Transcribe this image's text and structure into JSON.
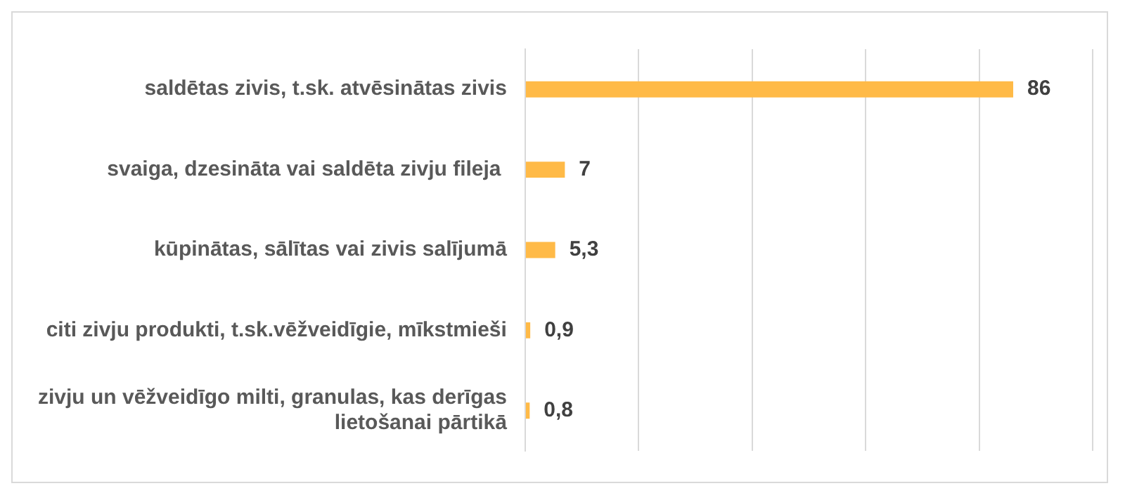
{
  "chart_data": {
    "type": "bar",
    "orientation": "horizontal",
    "categories": [
      "saldētas zivis, t.sk. atvēsinātas zivis",
      "svaiga, dzesināta vai saldēta zivju fileja ",
      "kūpinātas, sālītas vai zivis salījumā",
      "citi zivju produkti, t.sk.vēžveidīgie, mīkstmieši",
      "zivju un vēžveidīgo milti, granulas, kas derīgas lietošanai pārtikā"
    ],
    "values": [
      86,
      7,
      5.3,
      0.9,
      0.8
    ],
    "value_labels": [
      "86",
      "7",
      "5,3",
      "0,9",
      "0,8"
    ],
    "color": "#ffba47",
    "xlim": [
      0,
      100
    ],
    "xticks": [
      {
        "value": 0,
        "label": null
      },
      {
        "value": 20,
        "label": null
      },
      {
        "value": 40,
        "label": null
      },
      {
        "value": 60,
        "label": null
      },
      {
        "value": 80,
        "label": null
      },
      {
        "value": 100,
        "label": null
      }
    ],
    "grid": "x",
    "tick_labels": "y",
    "legend": false
  }
}
